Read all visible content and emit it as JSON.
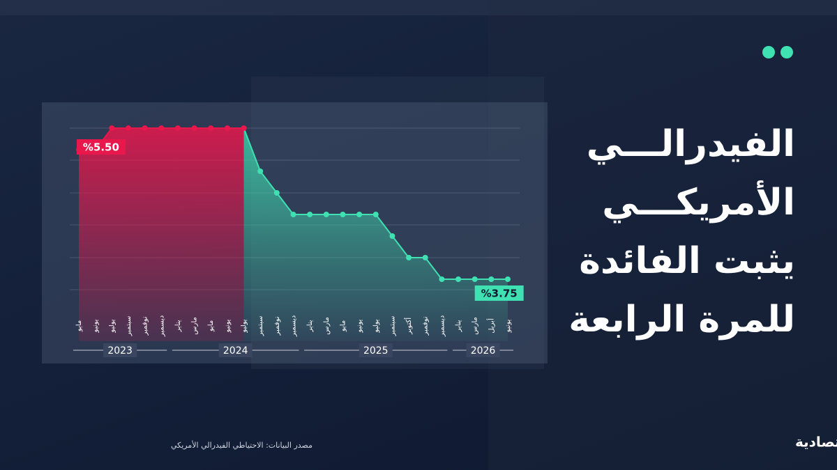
{
  "chart_data": {
    "type": "line",
    "title_lines": [
      "الفيدرالـــي",
      "الأمريكـــي",
      "يثبت الفائدة",
      "للمرة الرابعة"
    ],
    "groups": [
      {
        "name": "2023",
        "categories": [
          "مايو",
          "يونيو",
          "يوليو",
          "سبتمبر",
          "نوفمبر",
          "ديسمبر"
        ],
        "values": [
          5.25,
          5.25,
          5.5,
          5.5,
          5.5,
          5.5
        ]
      },
      {
        "name": "2024",
        "categories": [
          "يناير",
          "مارس",
          "مايو",
          "يونيو",
          "يوليو",
          "سبتمبر",
          "نوفمبر",
          "ديسمبر"
        ],
        "values": [
          5.5,
          5.5,
          5.5,
          5.5,
          5.5,
          5.0,
          4.75,
          4.5
        ]
      },
      {
        "name": "2025",
        "categories": [
          "يناير",
          "مارس",
          "مايو",
          "يونيو",
          "يوليو",
          "سبتمبر",
          "أكتوبر",
          "نوفمبر",
          "ديسمبر"
        ],
        "values": [
          4.5,
          4.5,
          4.5,
          4.5,
          4.5,
          4.25,
          4.0,
          4.0,
          3.75
        ]
      },
      {
        "name": "2026",
        "categories": [
          "يناير",
          "مارس",
          "أبريل",
          "يونيو"
        ],
        "values": [
          3.75,
          3.75,
          3.75,
          3.75
        ]
      }
    ],
    "colors": [
      "#e8174c",
      "#3fe0b2"
    ],
    "ylim": [
      3.5,
      5.75
    ],
    "annotations": [
      {
        "label": "%5.50",
        "value": 5.5
      },
      {
        "label": "%3.75",
        "value": 3.75
      }
    ],
    "source": "مصدر البيانات: الاحتياطي الفيدرالي الأمريكي",
    "brand": "الاقتصادية"
  }
}
